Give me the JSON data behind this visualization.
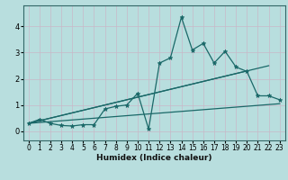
{
  "title": "",
  "xlabel": "Humidex (Indice chaleur)",
  "xlim": [
    -0.5,
    23.5
  ],
  "ylim": [
    -0.35,
    4.8
  ],
  "xticks": [
    0,
    1,
    2,
    3,
    4,
    5,
    6,
    7,
    8,
    9,
    10,
    11,
    12,
    13,
    14,
    15,
    16,
    17,
    18,
    19,
    20,
    21,
    22,
    23
  ],
  "yticks": [
    0,
    1,
    2,
    3,
    4
  ],
  "bg_color": "#b8dede",
  "grid_color": "#c8b8c8",
  "line_color": "#1a6868",
  "data_x": [
    0,
    1,
    2,
    3,
    4,
    5,
    6,
    7,
    8,
    9,
    10,
    11,
    12,
    13,
    14,
    15,
    16,
    17,
    18,
    19,
    20,
    21,
    22,
    23
  ],
  "data_y": [
    0.3,
    0.45,
    0.3,
    0.22,
    0.2,
    0.25,
    0.25,
    0.85,
    0.95,
    1.0,
    1.45,
    0.08,
    2.6,
    2.8,
    4.35,
    3.1,
    3.35,
    2.6,
    3.05,
    2.45,
    2.28,
    1.35,
    1.35,
    1.2
  ],
  "trend1_x": [
    0,
    20
  ],
  "trend1_y": [
    0.3,
    2.3
  ],
  "trend2_x": [
    0,
    22
  ],
  "trend2_y": [
    0.3,
    2.5
  ],
  "trend3_x": [
    0,
    23
  ],
  "trend3_y": [
    0.3,
    1.05
  ]
}
